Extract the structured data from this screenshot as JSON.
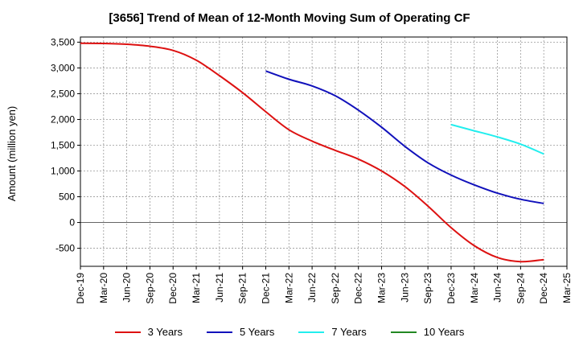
{
  "chart_data": {
    "type": "line",
    "title": "[3656]  Trend of Mean of 12-Month Moving Sum of Operating CF",
    "xlabel": "",
    "ylabel": "Amount (million yen)",
    "ylim": [
      -850,
      3600
    ],
    "yticks": [
      3500,
      3000,
      2500,
      2000,
      1500,
      1000,
      500,
      0,
      -500
    ],
    "ytick_labels": [
      "3,500",
      "3,000",
      "2,500",
      "2,000",
      "1,500",
      "1,000",
      "500",
      "0",
      "-500"
    ],
    "x_tick_labels": [
      "Dec-19",
      "Mar-20",
      "Jun-20",
      "Sep-20",
      "Dec-20",
      "Mar-21",
      "Jun-21",
      "Sep-21",
      "Dec-21",
      "Mar-22",
      "Jun-22",
      "Sep-22",
      "Dec-22",
      "Mar-23",
      "Jun-23",
      "Sep-23",
      "Dec-23",
      "Mar-24",
      "Jun-24",
      "Sep-24",
      "Dec-24",
      "Mar-25"
    ],
    "series": [
      {
        "name": "3 Years",
        "color": "#dd1111",
        "x": [
          0,
          1,
          2,
          3,
          4,
          5,
          6,
          7,
          8,
          9,
          10,
          11,
          12,
          13,
          14,
          15,
          16,
          17,
          18,
          19,
          20
        ],
        "values": [
          3480,
          3475,
          3460,
          3420,
          3340,
          3150,
          2850,
          2520,
          2150,
          1800,
          1580,
          1400,
          1230,
          1000,
          700,
          320,
          -100,
          -450,
          -680,
          -760,
          -720
        ]
      },
      {
        "name": "5 Years",
        "color": "#1111bb",
        "x": [
          8,
          9,
          10,
          11,
          12,
          13,
          14,
          15,
          16,
          17,
          18,
          19,
          20
        ],
        "values": [
          2940,
          2780,
          2650,
          2460,
          2180,
          1850,
          1480,
          1160,
          920,
          730,
          570,
          450,
          370
        ]
      },
      {
        "name": "7 Years",
        "color": "#22eeee",
        "x": [
          16,
          17,
          18,
          19,
          20
        ],
        "values": [
          1900,
          1780,
          1660,
          1520,
          1330
        ]
      },
      {
        "name": "10 Years",
        "color": "#228822",
        "x": [],
        "values": []
      }
    ]
  }
}
